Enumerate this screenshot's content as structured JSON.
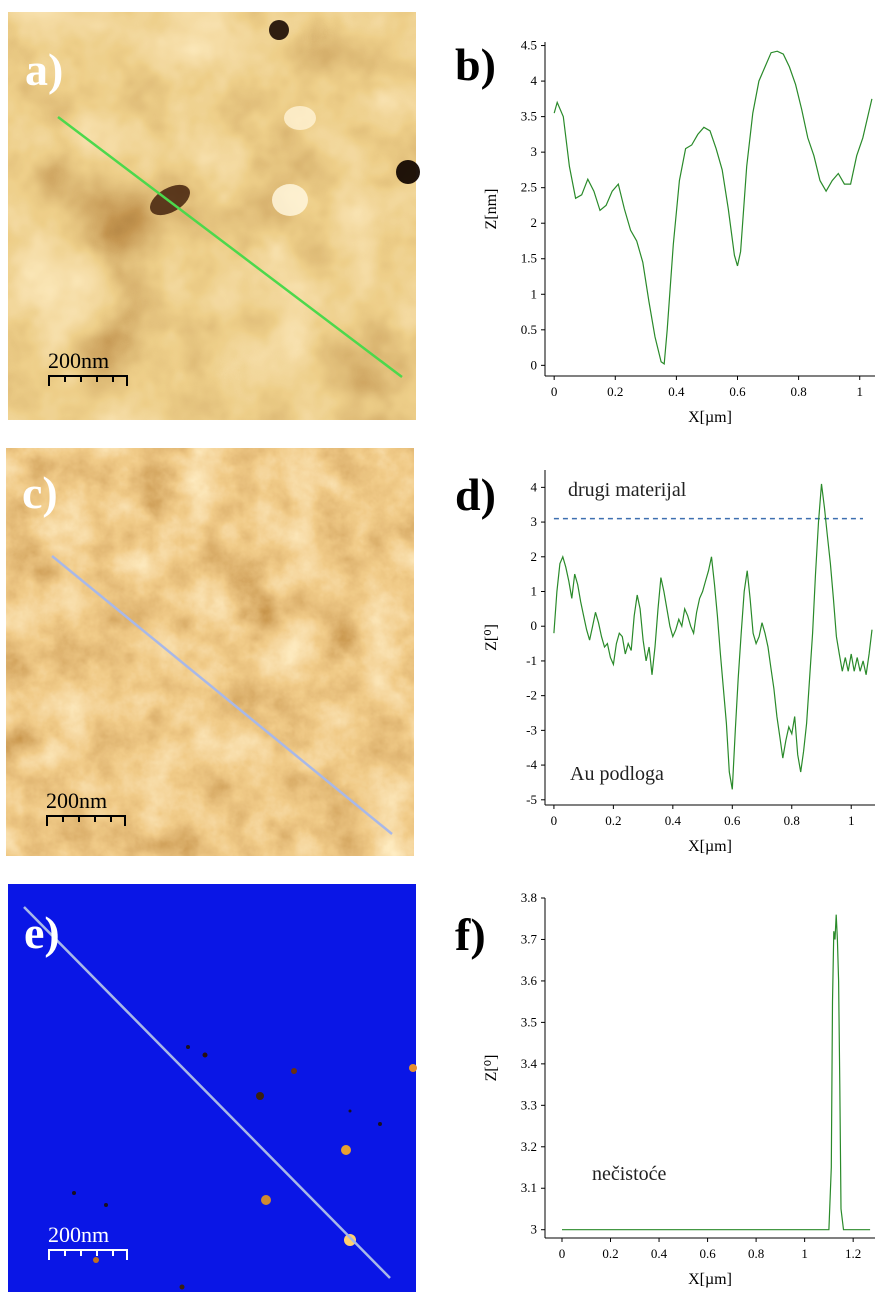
{
  "colors": {
    "afm_dark": "#3a1a05",
    "afm_mid": "#c8843c",
    "afm_light": "#fff2c8",
    "blue_bg": "#0a16e6",
    "profile_line_b": "#3ac03a",
    "profile_line_d": "#a8b8e8",
    "trace": "#2a8a2a",
    "dashed": "#3d6fb0"
  },
  "images": [
    {
      "letter": "a)",
      "scalebar": "200nm",
      "style": "afm-height",
      "letter_color": "#ffffff",
      "scale_color": "#000000"
    },
    {
      "letter": "c)",
      "scalebar": "200nm",
      "style": "afm-phase",
      "letter_color": "#ffffff",
      "scale_color": "#000000"
    },
    {
      "letter": "e)",
      "scalebar": "200nm",
      "style": "blue-phase",
      "letter_color": "#ffffff",
      "scale_color": "#ffffff"
    }
  ],
  "chart_data": [
    {
      "panel": "b)",
      "type": "line",
      "xlabel": "X[µm]",
      "ylabel": "Z[nm]",
      "xlim": [
        -0.03,
        1.05
      ],
      "ylim": [
        -0.15,
        4.55
      ],
      "xticks": [
        "0",
        "0.2",
        "0.4",
        "0.6",
        "0.8",
        "1"
      ],
      "yticks": [
        "0",
        "0.5",
        "1",
        "1.5",
        "2",
        "2.5",
        "3",
        "3.5",
        "4",
        "4.5"
      ],
      "annotations": [],
      "series": [
        {
          "x": [
            0,
            0.01,
            0.03,
            0.05,
            0.07,
            0.09,
            0.11,
            0.13,
            0.15,
            0.17,
            0.19,
            0.21,
            0.23,
            0.25,
            0.27,
            0.29,
            0.31,
            0.33,
            0.35,
            0.36,
            0.37,
            0.39,
            0.41,
            0.43,
            0.45,
            0.47,
            0.49,
            0.51,
            0.53,
            0.55,
            0.57,
            0.59,
            0.6,
            0.61,
            0.63,
            0.65,
            0.67,
            0.69,
            0.71,
            0.73,
            0.75,
            0.77,
            0.79,
            0.81,
            0.83,
            0.85,
            0.87,
            0.89,
            0.91,
            0.93,
            0.95,
            0.97,
            0.99,
            1.01,
            1.04
          ],
          "y": [
            3.55,
            3.7,
            3.5,
            2.8,
            2.35,
            2.4,
            2.62,
            2.45,
            2.18,
            2.25,
            2.45,
            2.55,
            2.2,
            1.9,
            1.75,
            1.45,
            0.9,
            0.4,
            0.05,
            0.02,
            0.5,
            1.7,
            2.6,
            3.05,
            3.1,
            3.25,
            3.35,
            3.3,
            3.05,
            2.75,
            2.2,
            1.55,
            1.4,
            1.6,
            2.8,
            3.55,
            4.0,
            4.2,
            4.4,
            4.42,
            4.38,
            4.2,
            3.95,
            3.6,
            3.2,
            2.95,
            2.6,
            2.45,
            2.6,
            2.7,
            2.55,
            2.55,
            2.95,
            3.2,
            3.75
          ]
        }
      ]
    },
    {
      "panel": "d)",
      "type": "line",
      "xlabel": "X[µm]",
      "ylabel": "Z[⁰]",
      "xlim": [
        -0.03,
        1.08
      ],
      "ylim": [
        -5.15,
        4.5
      ],
      "xticks": [
        "0",
        "0.2",
        "0.4",
        "0.6",
        "0.8",
        "1"
      ],
      "yticks": [
        "-5",
        "-4",
        "-3",
        "-2",
        "-1",
        "0",
        "1",
        "2",
        "3",
        "4"
      ],
      "hline": 3.1,
      "annotations": [
        "drugi materijal",
        "Au podloga"
      ],
      "series": [
        {
          "x": [
            0,
            0.01,
            0.02,
            0.03,
            0.04,
            0.05,
            0.06,
            0.07,
            0.08,
            0.09,
            0.1,
            0.11,
            0.12,
            0.13,
            0.14,
            0.15,
            0.16,
            0.17,
            0.18,
            0.19,
            0.2,
            0.21,
            0.22,
            0.23,
            0.24,
            0.25,
            0.26,
            0.27,
            0.28,
            0.29,
            0.3,
            0.31,
            0.32,
            0.33,
            0.34,
            0.35,
            0.36,
            0.37,
            0.38,
            0.39,
            0.4,
            0.41,
            0.42,
            0.43,
            0.44,
            0.45,
            0.46,
            0.47,
            0.48,
            0.49,
            0.5,
            0.51,
            0.52,
            0.53,
            0.54,
            0.55,
            0.56,
            0.57,
            0.58,
            0.59,
            0.6,
            0.61,
            0.62,
            0.63,
            0.64,
            0.65,
            0.66,
            0.67,
            0.68,
            0.69,
            0.7,
            0.71,
            0.72,
            0.73,
            0.74,
            0.75,
            0.76,
            0.77,
            0.78,
            0.79,
            0.8,
            0.81,
            0.82,
            0.83,
            0.84,
            0.85,
            0.86,
            0.87,
            0.88,
            0.89,
            0.9,
            0.91,
            0.92,
            0.93,
            0.94,
            0.95,
            0.96,
            0.97,
            0.98,
            0.99,
            1.0,
            1.01,
            1.02,
            1.03,
            1.04,
            1.05,
            1.06,
            1.07
          ],
          "y": [
            -0.2,
            1.0,
            1.8,
            2.0,
            1.7,
            1.3,
            0.8,
            1.5,
            1.2,
            0.7,
            0.3,
            -0.1,
            -0.4,
            0.0,
            0.4,
            0.1,
            -0.3,
            -0.6,
            -0.5,
            -0.9,
            -1.1,
            -0.5,
            -0.2,
            -0.3,
            -0.8,
            -0.5,
            -0.7,
            0.3,
            0.9,
            0.5,
            -0.4,
            -1.0,
            -0.6,
            -1.4,
            -0.6,
            0.5,
            1.4,
            1.0,
            0.5,
            0.0,
            -0.3,
            -0.1,
            0.2,
            0.0,
            0.5,
            0.3,
            0.0,
            -0.2,
            0.4,
            0.8,
            1.0,
            1.3,
            1.6,
            2.0,
            1.2,
            0.3,
            -0.8,
            -1.8,
            -2.8,
            -4.2,
            -4.7,
            -3.0,
            -1.5,
            -0.2,
            1.0,
            1.6,
            0.8,
            -0.2,
            -0.5,
            -0.3,
            0.1,
            -0.2,
            -0.6,
            -1.2,
            -1.8,
            -2.6,
            -3.2,
            -3.8,
            -3.3,
            -2.9,
            -3.1,
            -2.6,
            -3.7,
            -4.2,
            -3.6,
            -2.8,
            -1.5,
            -0.2,
            1.5,
            3.0,
            4.1,
            3.4,
            2.6,
            1.8,
            0.8,
            -0.3,
            -0.8,
            -1.3,
            -0.9,
            -1.3,
            -0.8,
            -1.3,
            -0.9,
            -1.3,
            -1.0,
            -1.4,
            -0.8,
            -0.1
          ]
        }
      ]
    },
    {
      "panel": "f)",
      "type": "line",
      "xlabel": "X[µm]",
      "ylabel": "Z[⁰]",
      "xlim": [
        -0.07,
        1.29
      ],
      "ylim": [
        2.98,
        3.8
      ],
      "xticks": [
        "0",
        "0.2",
        "0.4",
        "0.6",
        "0.8",
        "1",
        "1.2"
      ],
      "yticks": [
        "3",
        "3.1",
        "3.2",
        "3.3",
        "3.4",
        "3.5",
        "3.6",
        "3.7",
        "3.8"
      ],
      "annotations": [
        "nečistoće"
      ],
      "series": [
        {
          "x": [
            0,
            1.1,
            1.11,
            1.115,
            1.12,
            1.125,
            1.13,
            1.135,
            1.14,
            1.145,
            1.15,
            1.16,
            1.27
          ],
          "y": [
            3.0,
            3.0,
            3.15,
            3.55,
            3.72,
            3.7,
            3.76,
            3.7,
            3.6,
            3.35,
            3.05,
            3.0,
            3.0
          ]
        }
      ]
    }
  ]
}
